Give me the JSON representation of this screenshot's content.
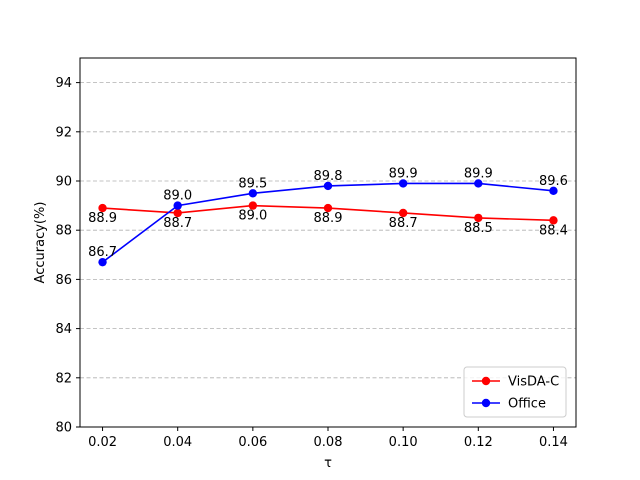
{
  "chart_data": {
    "type": "line",
    "title": "",
    "xlabel": "τ",
    "ylabel": "Accuracy(%)",
    "x": [
      0.02,
      0.04,
      0.06,
      0.08,
      0.1,
      0.12,
      0.14
    ],
    "x_tick_labels": [
      "0.02",
      "0.04",
      "0.06",
      "0.08",
      "0.10",
      "0.12",
      "0.14"
    ],
    "xlim": [
      0.014,
      0.146
    ],
    "ylim": [
      80,
      95
    ],
    "y_ticks": [
      80,
      82,
      84,
      86,
      88,
      90,
      92,
      94
    ],
    "y_tick_labels": [
      "80",
      "82",
      "84",
      "86",
      "88",
      "90",
      "92",
      "94"
    ],
    "grid": "y-dashed",
    "legend_position": "bottom-right",
    "series": [
      {
        "name": "VisDA-C",
        "color": "#ff0000",
        "values": [
          88.9,
          88.7,
          89.0,
          88.9,
          88.7,
          88.5,
          88.4
        ],
        "labels": [
          "88.9",
          "88.7",
          "89.0",
          "88.9",
          "88.7",
          "88.5",
          "88.4"
        ],
        "label_side": "below"
      },
      {
        "name": "Office",
        "color": "#0000ff",
        "values": [
          86.7,
          89.0,
          89.5,
          89.8,
          89.9,
          89.9,
          89.6
        ],
        "labels": [
          "86.7",
          "89.0",
          "89.5",
          "89.8",
          "89.9",
          "89.9",
          "89.6"
        ],
        "label_side": "above"
      }
    ]
  }
}
